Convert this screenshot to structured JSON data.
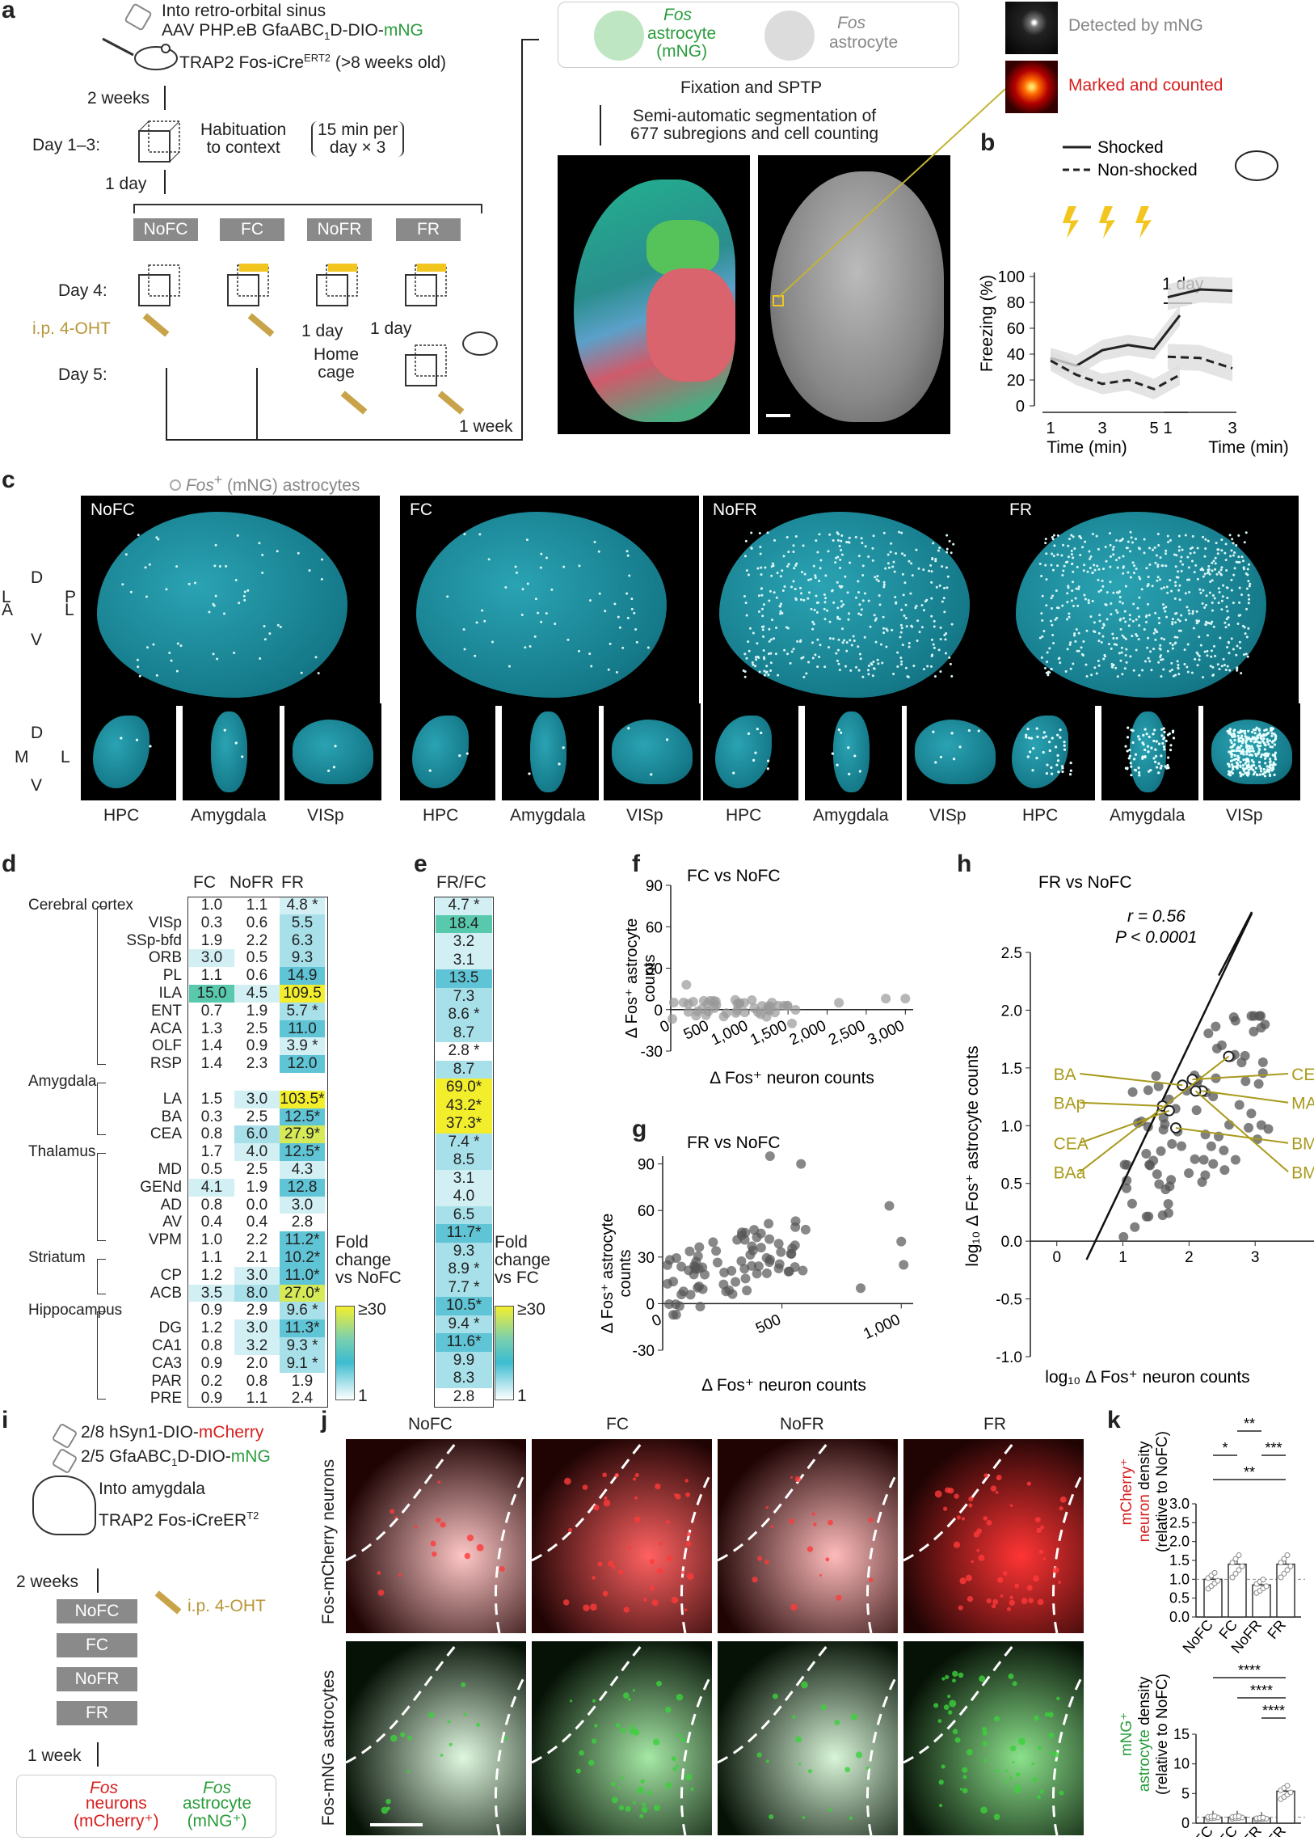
{
  "panel_letters": [
    "a",
    "b",
    "c",
    "d",
    "e",
    "f",
    "g",
    "h",
    "i",
    "j",
    "k"
  ],
  "a": {
    "inject1": "Into retro-orbital sinus",
    "inject2": "AAV PHP.eB GfaABC",
    "inject2_sub": "1",
    "inject2_b": "D-DIO-",
    "inject2_c": "mNG",
    "mouse": "TRAP2 Fos-iCre",
    "mouse_sup": "ERT2",
    "mouse_b": "(>8 weeks old)",
    "wait": "2 weeks",
    "day13": "Day 1–3:",
    "habit": "Habituation\nto context",
    "habit_time": "15 min per\nday × 3",
    "oneday": "1 day",
    "groups": [
      "NoFC",
      "FC",
      "NoFR",
      "FR"
    ],
    "day4": "Day 4:",
    "ohtt": "i.p. 4-OHT",
    "day5": "Day 5:",
    "oneday_b": "1 day",
    "oneday_c": "1 day",
    "home": "Home\ncage",
    "oneweek": "1 week",
    "fos_pos": "Fos",
    "fos_pos_b": "astrocyte\n(mNG)",
    "fos_neg": "Fos",
    "fos_neg_b": "astrocyte",
    "fix": "Fixation and SPTP",
    "seg": "Semi-automatic segmentation of\n677 subregions and cell counting",
    "detected": "Detected by mNG",
    "marked": "Marked and counted"
  },
  "b": {
    "legend": [
      "Shocked",
      "Non-shocked"
    ],
    "ylabel": "Freezing (%)",
    "xlabel": "Time (min)",
    "xlabel2": "Time (min)",
    "oneday": "1 day"
  },
  "c": {
    "legend": "Fos",
    "legend_b": "(mNG) astrocytes",
    "groups": [
      "NoFC",
      "FC",
      "NoFR",
      "FR"
    ],
    "regions": [
      "HPC",
      "Amygdala",
      "VISp"
    ],
    "axes1": [
      "D",
      "P",
      "A",
      "L",
      "V",
      "L"
    ],
    "axes2": [
      "D",
      "M",
      "L",
      "V"
    ]
  },
  "d": {
    "cols": [
      "FC",
      "NoFR",
      "FR"
    ],
    "rows": [
      {
        "label": "Cerebral cortex",
        "indent": 0,
        "v": [
          "1.0",
          "1.1",
          "4.8 *"
        ]
      },
      {
        "label": "VISp",
        "indent": 1,
        "v": [
          "0.3",
          "0.6",
          "5.5"
        ]
      },
      {
        "label": "SSp-bfd",
        "indent": 1,
        "v": [
          "1.9",
          "2.2",
          "6.3"
        ]
      },
      {
        "label": "ORB",
        "indent": 1,
        "v": [
          "3.0",
          "0.5",
          "9.3"
        ]
      },
      {
        "label": "PL",
        "indent": 1,
        "v": [
          "1.1",
          "0.6",
          "14.9"
        ]
      },
      {
        "label": "ILA",
        "indent": 1,
        "v": [
          "15.0",
          "4.5",
          "109.5"
        ]
      },
      {
        "label": "ENT",
        "indent": 1,
        "v": [
          "0.7",
          "1.9",
          "5.7 *"
        ]
      },
      {
        "label": "ACA",
        "indent": 1,
        "v": [
          "1.3",
          "2.5",
          "11.0"
        ]
      },
      {
        "label": "OLF",
        "indent": 1,
        "v": [
          "1.4",
          "0.9",
          "3.9 *"
        ]
      },
      {
        "label": "RSP",
        "indent": 1,
        "v": [
          "1.4",
          "2.3",
          "12.0"
        ]
      },
      {
        "label": "Amygdala",
        "indent": 0,
        "v": []
      },
      {
        "label": "LA",
        "indent": 1,
        "v": [
          "1.5",
          "3.0",
          "103.5*"
        ]
      },
      {
        "label": "BA",
        "indent": 1,
        "v": [
          "0.3",
          "2.5",
          "12.5*"
        ]
      },
      {
        "label": "CEA",
        "indent": 1,
        "v": [
          "0.8",
          "6.0",
          "27.9*"
        ]
      },
      {
        "label": "Thalamus",
        "indent": 0,
        "v": [
          "1.7",
          "4.0",
          "12.5*"
        ]
      },
      {
        "label": "MD",
        "indent": 1,
        "v": [
          "0.5",
          "2.5",
          "4.3"
        ]
      },
      {
        "label": "GENd",
        "indent": 1,
        "v": [
          "4.1",
          "1.9",
          "12.8"
        ]
      },
      {
        "label": "AD",
        "indent": 1,
        "v": [
          "0.8",
          "0.0",
          "3.0"
        ]
      },
      {
        "label": "AV",
        "indent": 1,
        "v": [
          "0.4",
          "0.4",
          "2.8"
        ]
      },
      {
        "label": "VPM",
        "indent": 1,
        "v": [
          "1.0",
          "2.2",
          "11.2*"
        ]
      },
      {
        "label": "Striatum",
        "indent": 0,
        "v": [
          "1.1",
          "2.1",
          "10.2*"
        ]
      },
      {
        "label": "CP",
        "indent": 1,
        "v": [
          "1.2",
          "3.0",
          "11.0*"
        ]
      },
      {
        "label": "ACB",
        "indent": 1,
        "v": [
          "3.5",
          "8.0",
          "27.0*"
        ]
      },
      {
        "label": "Hippocampus",
        "indent": 0,
        "v": [
          "0.9",
          "2.9",
          "9.6 *"
        ]
      },
      {
        "label": "DG",
        "indent": 1,
        "v": [
          "1.2",
          "3.0",
          "11.3*"
        ]
      },
      {
        "label": "CA1",
        "indent": 1,
        "v": [
          "0.8",
          "3.2",
          "9.3 *"
        ]
      },
      {
        "label": "CA3",
        "indent": 1,
        "v": [
          "0.9",
          "2.0",
          "9.1 *"
        ]
      },
      {
        "label": "PAR",
        "indent": 1,
        "v": [
          "0.2",
          "0.8",
          "1.9"
        ]
      },
      {
        "label": "PRE",
        "indent": 1,
        "v": [
          "0.9",
          "1.1",
          "2.4"
        ]
      }
    ],
    "legend": "Fold\nchange\nvs NoFC",
    "scale_top": "≥30",
    "scale_bot": "1"
  },
  "e": {
    "col": "FR/FC",
    "values": [
      "4.7 *",
      "18.4",
      "3.2",
      "3.1",
      "13.5",
      "7.3",
      "8.6 *",
      "8.7",
      "2.8 *",
      "8.7",
      "69.0*",
      "43.2*",
      "37.3*",
      "7.4 *",
      "8.5",
      "3.1",
      "4.0",
      "6.5",
      "11.7*",
      "9.3",
      "8.9 *",
      "7.7 *",
      "10.5*",
      "9.4 *",
      "11.6*",
      "9.9",
      "8.3",
      "2.8"
    ],
    "legend": "Fold\nchange\nvs FC",
    "scale_top": "≥30",
    "scale_bot": "1"
  },
  "f": {
    "title": "FC vs NoFC",
    "ylabel": "Δ Fos⁺ astrocyte\ncounts",
    "xlabel": "Δ Fos⁺ neuron counts"
  },
  "g": {
    "title": "FR vs NoFC",
    "ylabel": "Δ Fos⁺ astrocyte\ncounts",
    "xlabel": "Δ Fos⁺ neuron counts"
  },
  "h": {
    "title": "FR vs NoFC",
    "r": "r = 0.56",
    "p": "P < 0.0001",
    "ylabel": "log₁₀ Δ Fos⁺ astrocyte counts",
    "xlabel": "log₁₀ Δ Fos⁺ neuron counts",
    "labels_left": [
      "BA",
      "BAp",
      "CEA",
      "BAa"
    ],
    "labels_right": [
      "CEAp",
      "MA",
      "BMA",
      "BMAa"
    ]
  },
  "i": {
    "v1": "2/8 hSyn1-DIO-",
    "v1b": "mCherry",
    "v2": "2/5 GfaABC",
    "v2sub": "1",
    "v2b": "D-DIO-",
    "v2c": "mNG",
    "into": "Into amygdala",
    "mouse": "TRAP2 Fos-iCreER",
    "mouse_sup": "T2",
    "wait": "2 weeks",
    "ohtt": "i.p. 4-OHT",
    "groups": [
      "NoFC",
      "FC",
      "NoFR",
      "FR"
    ],
    "week": "1 week",
    "out1": "Fos",
    "out1b": "neurons\n(mCherry⁺)",
    "out2": "Fos",
    "out2b": "astrocyte\n(mNG⁺)"
  },
  "j": {
    "cols": [
      "NoFC",
      "FC",
      "NoFR",
      "FR"
    ],
    "row1": "Fos-mCherry neurons",
    "row2": "Fos-mNG astrocytes"
  },
  "k": {
    "y1": "mCherry⁺\nneuron density\n(relative to NoFC)",
    "y2": "mNG⁺\nastrocyte density\n(relative to NoFC)",
    "groups": [
      "NoFC",
      "FC",
      "NoFR",
      "FR"
    ],
    "sig_top": [
      "**",
      "*",
      "***",
      "**"
    ],
    "sig_bot": [
      "****",
      "****",
      "****"
    ]
  },
  "chart_data": [
    {
      "type": "line",
      "panel": "b",
      "title": "",
      "xlabel": "Time (min)",
      "ylabel": "Freezing (%)",
      "ylim": [
        0,
        100
      ],
      "series": [
        {
          "name": "Shocked",
          "x": [
            1,
            2,
            3,
            4,
            5,
            6
          ],
          "values": [
            37,
            31,
            43,
            47,
            44,
            70
          ]
        },
        {
          "name": "Non-shocked",
          "x": [
            1,
            2,
            3,
            4,
            5,
            6
          ],
          "values": [
            35,
            24,
            17,
            20,
            13,
            24
          ]
        }
      ]
    },
    {
      "type": "line",
      "panel": "b-day",
      "title": "",
      "xlabel": "Time (min)",
      "ylabel": "",
      "ylim": [
        0,
        100
      ],
      "series": [
        {
          "name": "Shocked",
          "x": [
            1,
            2,
            3
          ],
          "values": [
            84,
            90,
            89
          ]
        },
        {
          "name": "Non-shocked",
          "x": [
            1,
            2,
            3
          ],
          "values": [
            38,
            37,
            29
          ]
        }
      ]
    },
    {
      "type": "bar",
      "panel": "k-top",
      "categories": [
        "NoFC",
        "FC",
        "NoFR",
        "FR"
      ],
      "values": [
        1.0,
        1.4,
        0.85,
        1.4
      ],
      "ylim": [
        0,
        3.0
      ]
    },
    {
      "type": "bar",
      "panel": "k-bottom",
      "categories": [
        "NoFC",
        "FC",
        "NoFR",
        "FR"
      ],
      "values": [
        1.0,
        1.0,
        0.8,
        5.4
      ],
      "ylim": [
        0,
        15
      ]
    },
    {
      "type": "scatter",
      "panel": "h",
      "xlim": [
        0,
        4
      ],
      "ylim": [
        -1,
        2.5
      ],
      "fit": {
        "slope": 1.2,
        "intercept": -0.7
      }
    }
  ]
}
